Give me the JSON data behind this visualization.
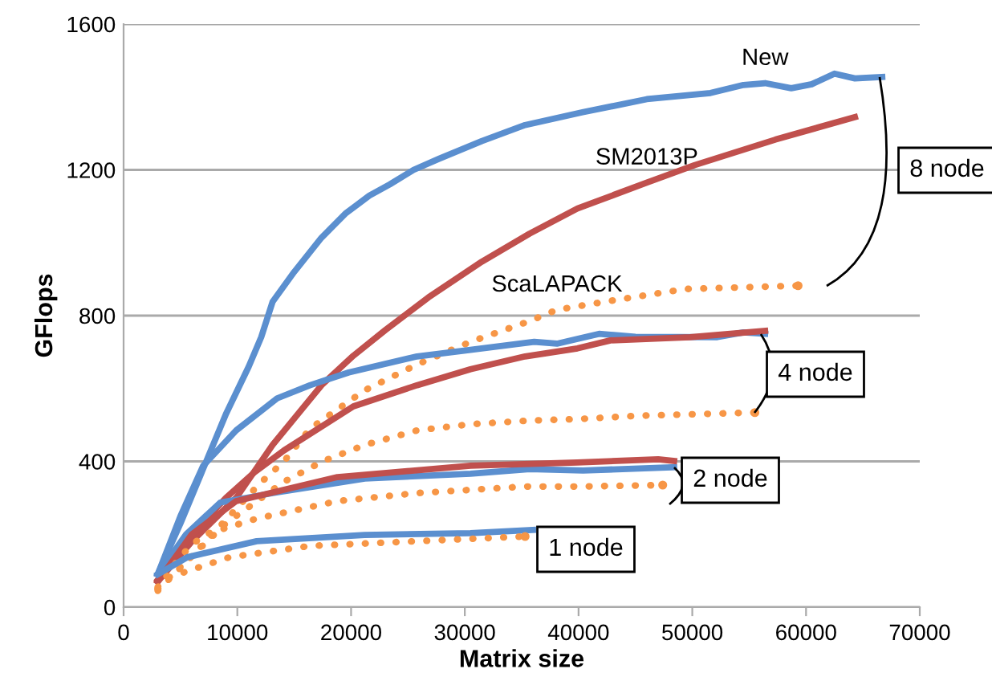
{
  "chart_data": {
    "type": "line",
    "xlabel": "Matrix size",
    "ylabel": "GFlops",
    "xlim": [
      0,
      70000
    ],
    "xticks": [
      0,
      10000,
      20000,
      30000,
      40000,
      50000,
      60000,
      70000
    ],
    "ylim": [
      0,
      1600
    ],
    "yticks": [
      0,
      400,
      800,
      1200,
      1600
    ],
    "grid": "y",
    "legend": false,
    "marker": "none",
    "series": [
      {
        "name": "New",
        "color": "#5b8fcf",
        "line_style": "solid",
        "x": [
          3000,
          5000,
          7000,
          9000,
          11000,
          12100,
          13100,
          15000,
          17400,
          19500,
          21600,
          23400,
          25500,
          27700,
          31500,
          35300,
          40350,
          46000,
          51600,
          54500,
          56400,
          58700,
          60500,
          62500,
          64300,
          66700
        ],
        "values": [
          90,
          230,
          380,
          530,
          660,
          741,
          838,
          920,
          1014,
          1080,
          1129,
          1160,
          1200,
          1230,
          1279,
          1323,
          1358,
          1394,
          1411,
          1433,
          1438,
          1424,
          1435,
          1464,
          1451,
          1455
        ]
      },
      {
        "name": "SM2013P",
        "color": "#c0504d",
        "line_style": "solid",
        "x": [
          3000,
          6000,
          9900,
          13100,
          17400,
          20200,
          23000,
          26800,
          31500,
          35700,
          39900,
          41800,
          46000,
          50200,
          57300,
          64300
        ],
        "values": [
          70,
          180,
          300,
          445,
          609,
          690,
          760,
          850,
          948,
          1025,
          1094,
          1116,
          1165,
          1213,
          1283,
          1345
        ]
      },
      {
        "name": "ScaLAPACK",
        "color": "#f79646",
        "line_style": "dotted",
        "x": [
          3000,
          6000,
          9000,
          12000,
          14100,
          16400,
          21200,
          25800,
          30500,
          35700,
          38100,
          42300,
          49400,
          59300
        ],
        "values": [
          45,
          140,
          240,
          340,
          400,
          490,
          595,
          666,
          728,
          785,
          816,
          838,
          873,
          882
        ]
      },
      {
        "color": "#5b8fcf",
        "line_style": "solid",
        "x": [
          3000,
          5000,
          7000,
          9900,
          13500,
          16400,
          19800,
          25800,
          30500,
          36100,
          38100,
          39900,
          41800,
          45000,
          52200,
          54500,
          56400
        ],
        "values": [
          90,
          250,
          388,
          485,
          573,
          609,
          644,
          688,
          706,
          728,
          723,
          736,
          750,
          742,
          741,
          754,
          750
        ]
      },
      {
        "color": "#c0504d",
        "line_style": "solid",
        "x": [
          3000,
          6000,
          9000,
          11500,
          14100,
          20200,
          25800,
          30500,
          35300,
          39900,
          42800,
          49800,
          56400
        ],
        "values": [
          75,
          200,
          300,
          370,
          430,
          551,
          609,
          653,
          688,
          710,
          732,
          741,
          758
        ]
      },
      {
        "color": "#f79646",
        "line_style": "dotted",
        "x": [
          3000,
          6000,
          9000,
          14100,
          17500,
          21200,
          25800,
          30500,
          35700,
          39900,
          45100,
          55500
        ],
        "values": [
          50,
          140,
          230,
          344,
          400,
          445,
          485,
          502,
          512,
          516,
          525,
          534
        ]
      },
      {
        "color": "#5b8fcf",
        "line_style": "solid",
        "x": [
          3000,
          5500,
          8500,
          13100,
          21200,
          30500,
          35700,
          40400,
          48400
        ],
        "values": [
          90,
          200,
          287,
          313,
          353,
          366,
          379,
          375,
          384
        ]
      },
      {
        "color": "#c0504d",
        "line_style": "solid",
        "x": [
          3000,
          6000,
          9900,
          18800,
          30500,
          39900,
          47000,
          48400
        ],
        "values": [
          70,
          200,
          291,
          357,
          388,
          397,
          406,
          401
        ]
      },
      {
        "color": "#f79646",
        "line_style": "dotted",
        "x": [
          3000,
          5000,
          7000,
          11700,
          18800,
          25800,
          35300,
          39900,
          47400
        ],
        "values": [
          50,
          140,
          198,
          243,
          291,
          313,
          331,
          331,
          335
        ]
      },
      {
        "color": "#5b8fcf",
        "line_style": "solid",
        "x": [
          3000,
          5600,
          11700,
          21200,
          30500,
          36000
        ],
        "values": [
          90,
          137,
          181,
          198,
          203,
          212
        ]
      },
      {
        "color": "#f79646",
        "line_style": "dotted",
        "x": [
          3000,
          3700,
          9300,
          16400,
          25800,
          35300
        ],
        "values": [
          55,
          79,
          137,
          168,
          181,
          194
        ]
      }
    ],
    "annotations": [
      "8 node",
      "4 node",
      "2 node",
      "1 node"
    ]
  }
}
